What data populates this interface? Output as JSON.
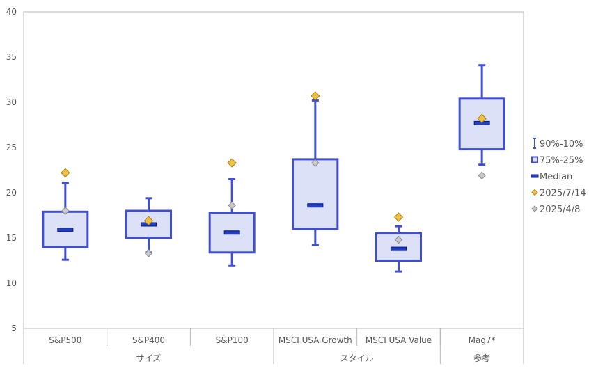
{
  "chart_data": {
    "type": "box",
    "ylim": [
      5,
      40
    ],
    "yticks": [
      5,
      10,
      15,
      20,
      25,
      30,
      35,
      40
    ],
    "categories": [
      "S&P500",
      "S&P400",
      "S&P100",
      "MSCI USA Growth",
      "MSCI USA Value",
      "Mag7*"
    ],
    "groups": [
      {
        "label": "サイズ",
        "span": 3
      },
      {
        "label": "スタイル",
        "span": 2
      },
      {
        "label": "参考",
        "span": 1
      }
    ],
    "boxes": [
      {
        "category": "S&P500",
        "p90": 21.1,
        "p75": 17.9,
        "median": 15.9,
        "p25": 14.0,
        "p10": 12.6,
        "d2025_7_14": 22.2,
        "d2025_4_8": 18.0
      },
      {
        "category": "S&P400",
        "p90": 19.4,
        "p75": 18.0,
        "median": 16.5,
        "p25": 15.0,
        "p10": 13.4,
        "d2025_7_14": 16.9,
        "d2025_4_8": 13.3
      },
      {
        "category": "S&P100",
        "p90": 21.5,
        "p75": 17.8,
        "median": 15.6,
        "p25": 13.4,
        "p10": 11.9,
        "d2025_7_14": 23.3,
        "d2025_4_8": 18.6
      },
      {
        "category": "MSCI USA Growth",
        "p90": 30.2,
        "p75": 23.7,
        "median": 18.6,
        "p25": 16.0,
        "p10": 14.2,
        "d2025_7_14": 30.7,
        "d2025_4_8": 23.3
      },
      {
        "category": "MSCI USA Value",
        "p90": 16.3,
        "p75": 15.5,
        "median": 13.8,
        "p25": 12.5,
        "p10": 11.3,
        "d2025_7_14": 17.3,
        "d2025_4_8": 14.8
      },
      {
        "category": "Mag7*",
        "p90": 34.1,
        "p75": 30.4,
        "median": 27.7,
        "p25": 24.8,
        "p10": 23.1,
        "d2025_7_14": 28.2,
        "d2025_4_8": 21.9
      }
    ],
    "legend": {
      "placement": "right",
      "items": [
        {
          "key": "whisker",
          "label": "90%-10%"
        },
        {
          "key": "box",
          "label": "75%-25%"
        },
        {
          "key": "median",
          "label": "Median"
        },
        {
          "key": "d2025_7_14",
          "label": "2025/7/14"
        },
        {
          "key": "d2025_4_8",
          "label": "2025/4/8"
        }
      ]
    },
    "colors": {
      "box_stroke": "#3f4fd0",
      "box_fill": "#dde1f7",
      "median_fill": "#2340c2",
      "median_stroke": "#0a1a80",
      "marker_recent": "#f2c040",
      "marker_recent_stroke": "#a8801a",
      "marker_old": "#c8c8cc",
      "marker_old_stroke": "#8a8a8e",
      "axis": "#b8b8b8",
      "text": "#555555"
    }
  }
}
